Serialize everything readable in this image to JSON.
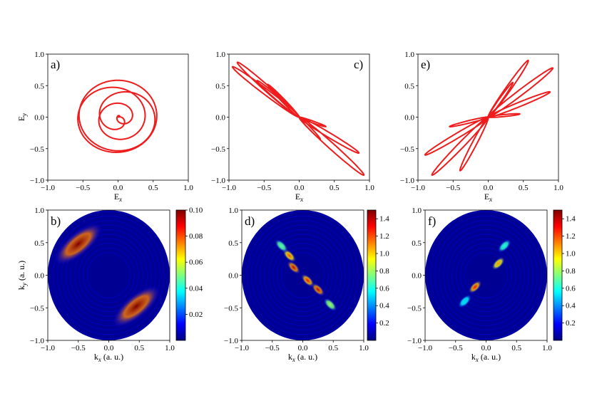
{
  "colors": {
    "curve": "#ee1c1c",
    "jet": [
      "#00007f",
      "#0000ff",
      "#007fff",
      "#00ffff",
      "#7fff7f",
      "#ffff00",
      "#ff7f00",
      "#ff0000",
      "#7f0000"
    ]
  },
  "chart_data": [
    {
      "id": "a",
      "type": "line",
      "letter": "a)",
      "description_hidden": false,
      "xlabel": "E",
      "xlabel_sub": "x",
      "ylabel": "E",
      "ylabel_sub": "y",
      "xlim": [
        -1.0,
        1.0
      ],
      "ylim": [
        -1.0,
        1.0
      ],
      "xticks": [
        "-1.0",
        "-0.5",
        "0.0",
        "0.5",
        "1.0"
      ],
      "yticks": [
        "-1.0",
        "-0.5",
        "0.0",
        "0.5",
        "1.0"
      ],
      "curve": {
        "kind": "spiral",
        "turns": 5,
        "r_max": 0.93
      }
    },
    {
      "id": "c",
      "type": "line",
      "letter": "c)",
      "xlabel": "E",
      "xlabel_sub": "x",
      "ylabel": "",
      "ylabel_sub": "",
      "xlim": [
        -1.0,
        1.0
      ],
      "ylim": [
        -1.0,
        1.0
      ],
      "xticks": [
        "-1.0",
        "-0.5",
        "0.0",
        "0.5",
        "1.0"
      ],
      "yticks": [
        "-1.0",
        "-0.5",
        "0.0",
        "0.5",
        "1.0"
      ],
      "curve": {
        "kind": "petals",
        "petals": [
          [
            -0.88,
            0.87
          ],
          [
            -0.95,
            0.8
          ],
          [
            -0.6,
            0.58
          ],
          [
            -0.45,
            0.52
          ],
          [
            0.38,
            -0.15
          ],
          [
            0.92,
            -0.92
          ],
          [
            0.85,
            -0.57
          ],
          [
            0.3,
            -0.35
          ]
        ]
      }
    },
    {
      "id": "e",
      "type": "line",
      "letter": "e)",
      "xlabel": "E",
      "xlabel_sub": "x",
      "ylabel": "",
      "ylabel_sub": "",
      "xlim": [
        -1.0,
        1.0
      ],
      "ylim": [
        -1.0,
        1.0
      ],
      "xticks": [
        "-1.0",
        "-0.5",
        "0.0",
        "0.5",
        "1.0"
      ],
      "yticks": [
        "-1.0",
        "-0.5",
        "0.0",
        "0.5",
        "1.0"
      ],
      "curve": {
        "kind": "petals",
        "petals": [
          [
            0.57,
            0.9
          ],
          [
            0.92,
            0.78
          ],
          [
            0.88,
            0.4
          ],
          [
            0.35,
            0.55
          ],
          [
            0.45,
            0.05
          ],
          [
            -0.9,
            -0.6
          ],
          [
            -0.8,
            -0.92
          ],
          [
            -0.4,
            -0.85
          ],
          [
            -0.55,
            -0.15
          ]
        ]
      }
    },
    {
      "id": "b",
      "type": "heatmap",
      "letter": "b)",
      "xlabel": "k",
      "xlabel_sub": "x",
      "xlabel_suffix": " (a. u.)",
      "ylabel": "k",
      "ylabel_sub": "y",
      "ylabel_suffix": " (a. u.)",
      "xlim": [
        -1.0,
        1.0
      ],
      "ylim": [
        -1.0,
        1.0
      ],
      "xticks": [
        "-1.0",
        "-0.5",
        "0.0",
        "0.5",
        "1.0"
      ],
      "yticks": [
        "-1.0",
        "-0.5",
        "0.0",
        "0.5",
        "1.0"
      ],
      "colorbar": {
        "min": 0.0,
        "max": 0.1,
        "ticks": [
          "0.02",
          "0.04",
          "0.06",
          "0.08",
          "0.10"
        ],
        "tick_values": [
          0.02,
          0.04,
          0.06,
          0.08,
          0.1
        ]
      },
      "blobs": [
        [
          -0.5,
          0.48,
          0.9
        ],
        [
          0.45,
          -0.48,
          1.0
        ]
      ]
    },
    {
      "id": "d",
      "type": "heatmap",
      "letter": "d)",
      "xlabel": "k",
      "xlabel_sub": "x",
      "xlabel_suffix": " (a. u.)",
      "ylabel": "",
      "ylabel_sub": "",
      "ylabel_suffix": "",
      "xlim": [
        -1.0,
        1.0
      ],
      "ylim": [
        -1.0,
        1.0
      ],
      "xticks": [
        "-1.0",
        "-0.5",
        "0.0",
        "0.5",
        "1.0"
      ],
      "yticks": [
        "-1.0",
        "-0.5",
        "0.0",
        "0.5",
        "1.0"
      ],
      "colorbar": {
        "min": 0.0,
        "max": 1.5,
        "ticks": [
          "0.2",
          "0.4",
          "0.6",
          "0.8",
          "1.0",
          "1.2",
          "1.4"
        ],
        "tick_values": [
          0.2,
          0.4,
          0.6,
          0.8,
          1.0,
          1.2,
          1.4
        ]
      },
      "blobs": [
        [
          -0.22,
          0.3,
          1.2
        ],
        [
          -0.15,
          0.12,
          1.4
        ],
        [
          0.08,
          -0.08,
          1.3
        ],
        [
          0.25,
          -0.22,
          1.4
        ],
        [
          0.45,
          -0.45,
          0.8
        ],
        [
          -0.35,
          0.45,
          0.7
        ]
      ]
    },
    {
      "id": "f",
      "type": "heatmap",
      "letter": "f)",
      "xlabel": "k",
      "xlabel_sub": "x",
      "xlabel_suffix": " (a. u.)",
      "ylabel": "",
      "ylabel_sub": "",
      "ylabel_suffix": "",
      "xlim": [
        -1.0,
        1.0
      ],
      "ylim": [
        -1.0,
        1.0
      ],
      "xticks": [
        "-1.0",
        "-0.5",
        "0.0",
        "0.5",
        "1.0"
      ],
      "yticks": [
        "-1.0",
        "-0.5",
        "0.0",
        "0.5",
        "1.0"
      ],
      "colorbar": {
        "min": 0.0,
        "max": 1.5,
        "ticks": [
          "0.2",
          "0.4",
          "0.6",
          "0.8",
          "1.0",
          "1.2",
          "1.4"
        ],
        "tick_values": [
          0.2,
          0.4,
          0.6,
          0.8,
          1.0,
          1.2,
          1.4
        ]
      },
      "blobs": [
        [
          -0.18,
          -0.18,
          1.3
        ],
        [
          0.2,
          0.18,
          1.1
        ],
        [
          0.3,
          0.45,
          0.6
        ],
        [
          -0.35,
          -0.4,
          0.5
        ]
      ]
    }
  ]
}
